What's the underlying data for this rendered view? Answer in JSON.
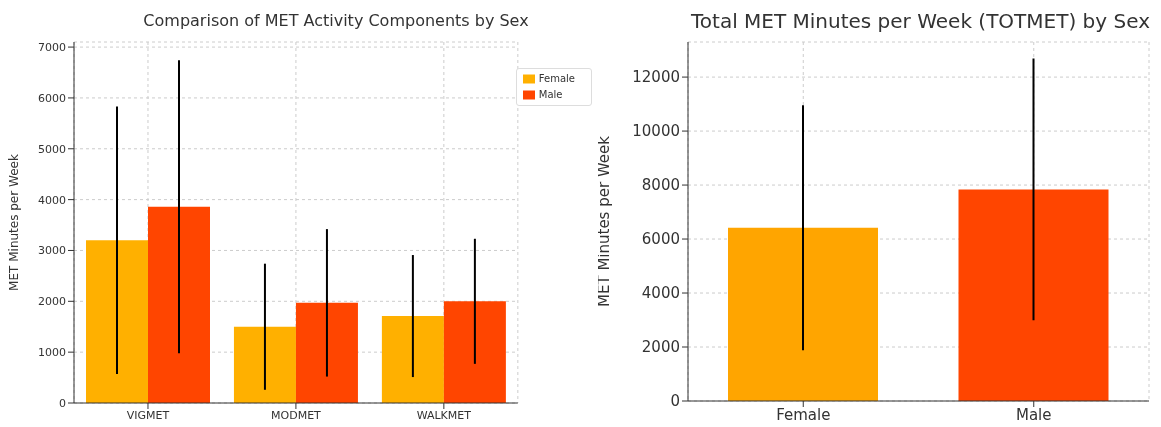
{
  "chart_data": [
    {
      "type": "bar",
      "title": "Comparison of MET Activity Components by Sex",
      "ylabel": "MET Minutes per Week",
      "categories": [
        "VIGMET",
        "MODMET",
        "WALKMET"
      ],
      "series": [
        {
          "name": "Female",
          "color": "#ffb000",
          "values": [
            3200,
            1500,
            1710
          ],
          "errors": [
            2630,
            1240,
            1200
          ]
        },
        {
          "name": "Male",
          "color": "#ff4500",
          "values": [
            3860,
            1970,
            2000
          ],
          "errors": [
            2880,
            1450,
            1230
          ]
        }
      ],
      "ylim": [
        0,
        7100
      ],
      "yticks": [
        0,
        1000,
        2000,
        3000,
        4000,
        5000,
        6000,
        7000
      ],
      "grid": true,
      "legend": "top right"
    },
    {
      "type": "bar",
      "title": "Total MET Minutes per Week (TOTMET) by Sex",
      "ylabel": "MET Minutes per Week",
      "categories": [
        "Female",
        "Male"
      ],
      "values": [
        6420,
        7840
      ],
      "colors": [
        "#ffa500",
        "#ff4500"
      ],
      "errors": [
        4540,
        4850
      ],
      "ylim": [
        0,
        13300
      ],
      "yticks": [
        0,
        2000,
        4000,
        6000,
        8000,
        10000,
        12000
      ],
      "grid": true
    }
  ]
}
